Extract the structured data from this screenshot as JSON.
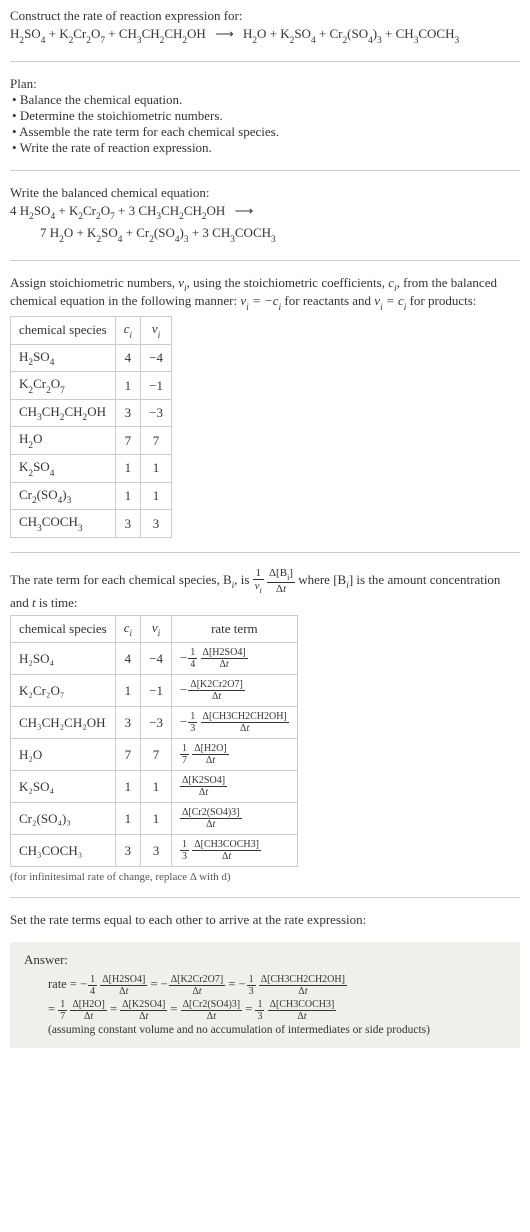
{
  "header": {
    "prompt": "Construct the rate of reaction expression for:"
  },
  "equation_unbalanced": {
    "lhs": [
      "H₂SO₄",
      "K₂Cr₂O₇",
      "CH₃CH₂CH₂OH"
    ],
    "arrow": "⟶",
    "rhs": [
      "H₂O",
      "K₂SO₄",
      "Cr₂(SO₄)₃",
      "CH₃COCH₃"
    ]
  },
  "plan": {
    "title": "Plan:",
    "items": [
      "Balance the chemical equation.",
      "Determine the stoichiometric numbers.",
      "Assemble the rate term for each chemical species.",
      "Write the rate of reaction expression."
    ]
  },
  "balanced_title": "Write the balanced chemical equation:",
  "equation_balanced": {
    "lhs": [
      {
        "coef": "4",
        "sp": "H₂SO₄"
      },
      {
        "coef": "",
        "sp": "K₂Cr₂O₇"
      },
      {
        "coef": "3",
        "sp": "CH₃CH₂CH₂OH"
      }
    ],
    "arrow": "⟶",
    "rhs": [
      {
        "coef": "7",
        "sp": "H₂O"
      },
      {
        "coef": "",
        "sp": "K₂SO₄"
      },
      {
        "coef": "",
        "sp": "Cr₂(SO₄)₃"
      },
      {
        "coef": "3",
        "sp": "CH₃COCH₃"
      }
    ]
  },
  "stoich_intro": {
    "pre": "Assign stoichiometric numbers, ",
    "nu": "ν",
    "mid1": ", using the stoichiometric coefficients, ",
    "c": "c",
    "mid2": ", from the balanced chemical equation in the following manner: ",
    "rel1": "νᵢ = −cᵢ",
    "mid3": " for reactants and ",
    "rel2": "νᵢ = cᵢ",
    "mid4": " for products:"
  },
  "stoich_table": {
    "headers": [
      "chemical species",
      "cᵢ",
      "νᵢ"
    ],
    "rows": [
      [
        "H₂SO₄",
        "4",
        "−4"
      ],
      [
        "K₂Cr₂O₇",
        "1",
        "−1"
      ],
      [
        "CH₃CH₂CH₂OH",
        "3",
        "−3"
      ],
      [
        "H₂O",
        "7",
        "7"
      ],
      [
        "K₂SO₄",
        "1",
        "1"
      ],
      [
        "Cr₂(SO₄)₃",
        "1",
        "1"
      ],
      [
        "CH₃COCH₃",
        "3",
        "3"
      ]
    ]
  },
  "rate_intro": {
    "pre": "The rate term for each chemical species, B",
    "mid1": ", is ",
    "mid2": " where [B",
    "mid3": "] is the amount concentration and ",
    "tvar": "t",
    "mid4": " is time:"
  },
  "rate_frac": {
    "outer_num": "1",
    "outer_den": "νᵢ",
    "inner_num": "Δ[Bᵢ]",
    "inner_den": "Δt"
  },
  "rate_table": {
    "headers": [
      "chemical species",
      "cᵢ",
      "νᵢ",
      "rate term"
    ],
    "rows": [
      {
        "sp": "H₂SO₄",
        "c": "4",
        "nu": "−4",
        "sign": "−",
        "coef_num": "1",
        "coef_den": "4",
        "top": "Δ[H2SO4]",
        "bot": "Δt"
      },
      {
        "sp": "K₂Cr₂O₇",
        "c": "1",
        "nu": "−1",
        "sign": "−",
        "coef_num": "",
        "coef_den": "",
        "top": "Δ[K2Cr2O7]",
        "bot": "Δt"
      },
      {
        "sp": "CH₃CH₂CH₂OH",
        "c": "3",
        "nu": "−3",
        "sign": "−",
        "coef_num": "1",
        "coef_den": "3",
        "top": "Δ[CH3CH2CH2OH]",
        "bot": "Δt"
      },
      {
        "sp": "H₂O",
        "c": "7",
        "nu": "7",
        "sign": "",
        "coef_num": "1",
        "coef_den": "7",
        "top": "Δ[H2O]",
        "bot": "Δt"
      },
      {
        "sp": "K₂SO₄",
        "c": "1",
        "nu": "1",
        "sign": "",
        "coef_num": "",
        "coef_den": "",
        "top": "Δ[K2SO4]",
        "bot": "Δt"
      },
      {
        "sp": "Cr₂(SO₄)₃",
        "c": "1",
        "nu": "1",
        "sign": "",
        "coef_num": "",
        "coef_den": "",
        "top": "Δ[Cr2(SO4)3]",
        "bot": "Δt"
      },
      {
        "sp": "CH₃COCH₃",
        "c": "3",
        "nu": "3",
        "sign": "",
        "coef_num": "1",
        "coef_den": "3",
        "top": "Δ[CH3COCH3]",
        "bot": "Δt"
      }
    ]
  },
  "rate_note": "(for infinitesimal rate of change, replace Δ with d)",
  "final_intro": "Set the rate terms equal to each other to arrive at the rate expression:",
  "answer": {
    "label": "Answer:",
    "line1": {
      "lead": "rate = ",
      "terms": [
        {
          "sign": "−",
          "cn": "1",
          "cd": "4",
          "top": "Δ[H2SO4]",
          "bot": "Δt"
        },
        {
          "sign": "−",
          "cn": "",
          "cd": "",
          "top": "Δ[K2Cr2O7]",
          "bot": "Δt"
        },
        {
          "sign": "−",
          "cn": "1",
          "cd": "3",
          "top": "Δ[CH3CH2CH2OH]",
          "bot": "Δt"
        }
      ]
    },
    "line2": {
      "lead": "= ",
      "terms": [
        {
          "sign": "",
          "cn": "1",
          "cd": "7",
          "top": "Δ[H2O]",
          "bot": "Δt"
        },
        {
          "sign": "",
          "cn": "",
          "cd": "",
          "top": "Δ[K2SO4]",
          "bot": "Δt"
        },
        {
          "sign": "",
          "cn": "",
          "cd": "",
          "top": "Δ[Cr2(SO4)3]",
          "bot": "Δt"
        },
        {
          "sign": "",
          "cn": "1",
          "cd": "3",
          "top": "Δ[CH3COCH3]",
          "bot": "Δt"
        }
      ]
    },
    "note": "(assuming constant volume and no accumulation of intermediates or side products)"
  },
  "colors": {
    "text": "#333333",
    "border": "#cccccc",
    "answer_bg": "#f1efe9"
  }
}
